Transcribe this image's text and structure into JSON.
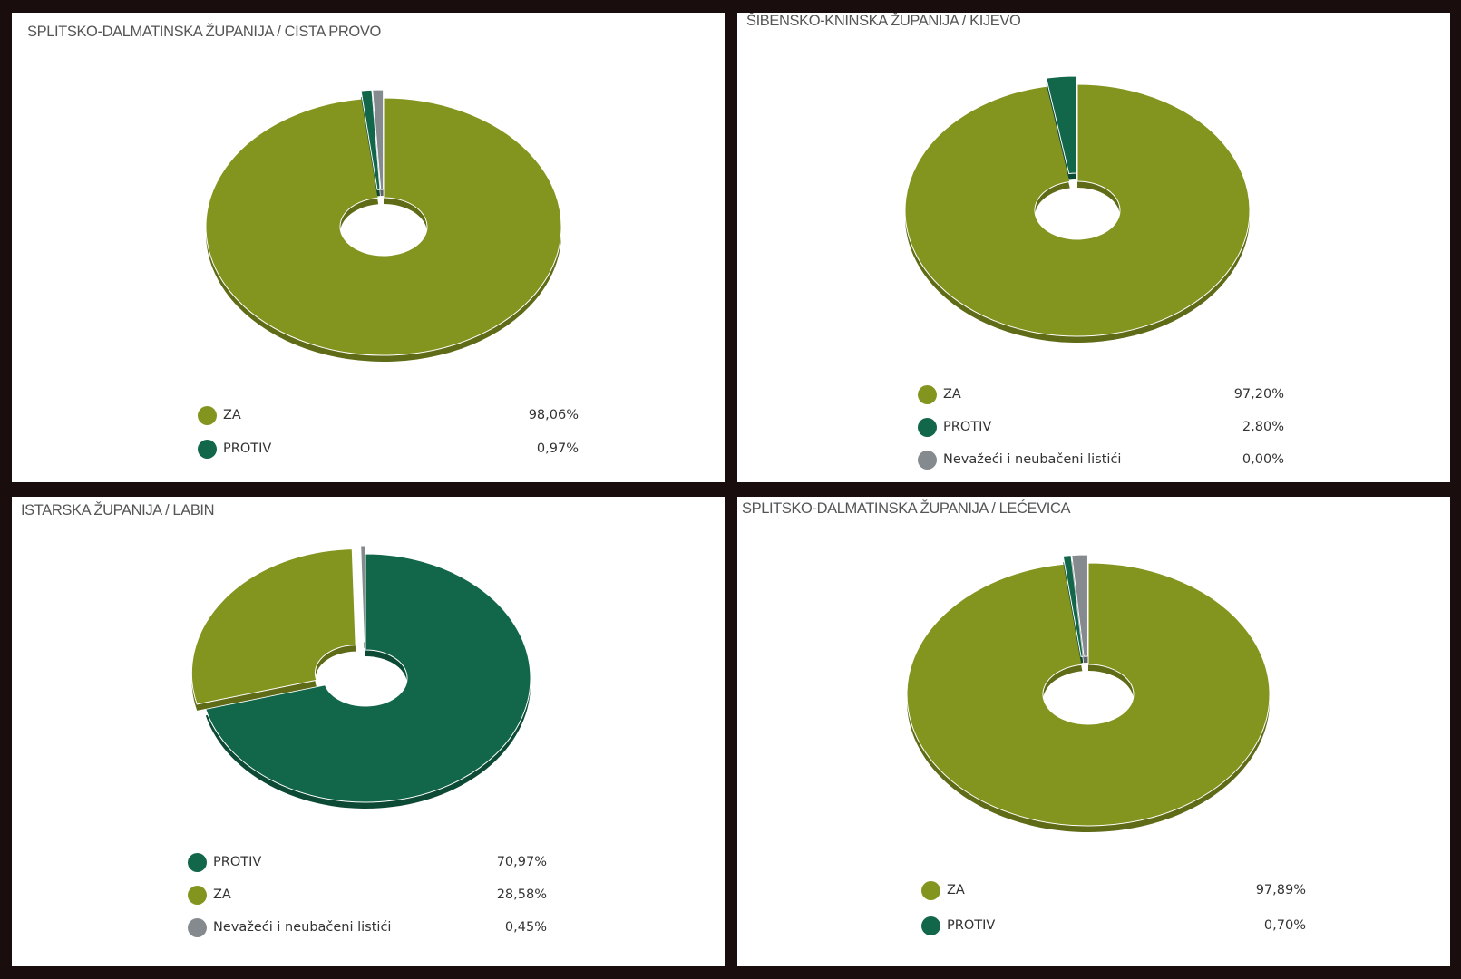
{
  "colors": {
    "za": "#84951f",
    "protiv": "#12674b",
    "nevazeci": "#858a8e"
  },
  "chart_data": [
    {
      "type": "pie",
      "title": "SPLITSKO-DALMATINSKA ŽUPANIJA / CISTA PROVO",
      "slices": [
        {
          "label": "ZA",
          "value": 98.06,
          "display": "98,06%",
          "color": "#84951f"
        },
        {
          "label": "PROTIV",
          "value": 0.97,
          "display": "0,97%",
          "color": "#12674b"
        },
        {
          "label": "",
          "value": 0.97,
          "display": "",
          "color": "#858a8e"
        }
      ]
    },
    {
      "type": "pie",
      "title": "ŠIBENSKO-KNINSKA ŽUPANIJA / KIJEVO",
      "slices": [
        {
          "label": "ZA",
          "value": 97.2,
          "display": "97,20%",
          "color": "#84951f"
        },
        {
          "label": "PROTIV",
          "value": 2.8,
          "display": "2,80%",
          "color": "#12674b"
        },
        {
          "label": "Nevažeći i neubačeni listići",
          "value": 0.0,
          "display": "0,00%",
          "color": "#858a8e"
        }
      ]
    },
    {
      "type": "pie",
      "title": "ISTARSKA ŽUPANIJA / LABIN",
      "slices": [
        {
          "label": "PROTIV",
          "value": 70.97,
          "display": "70,97%",
          "color": "#12674b"
        },
        {
          "label": "ZA",
          "value": 28.58,
          "display": "28,58%",
          "color": "#84951f"
        },
        {
          "label": "Nevažeći i neubačeni listići",
          "value": 0.45,
          "display": "0,45%",
          "color": "#858a8e"
        }
      ]
    },
    {
      "type": "pie",
      "title": "SPLITSKO-DALMATINSKA ŽUPANIJA / LEĆEVICA",
      "slices": [
        {
          "label": "ZA",
          "value": 97.89,
          "display": "97,89%",
          "color": "#84951f"
        },
        {
          "label": "PROTIV",
          "value": 0.7,
          "display": "0,70%",
          "color": "#12674b"
        },
        {
          "label": "",
          "value": 1.41,
          "display": "",
          "color": "#858a8e"
        }
      ]
    }
  ]
}
